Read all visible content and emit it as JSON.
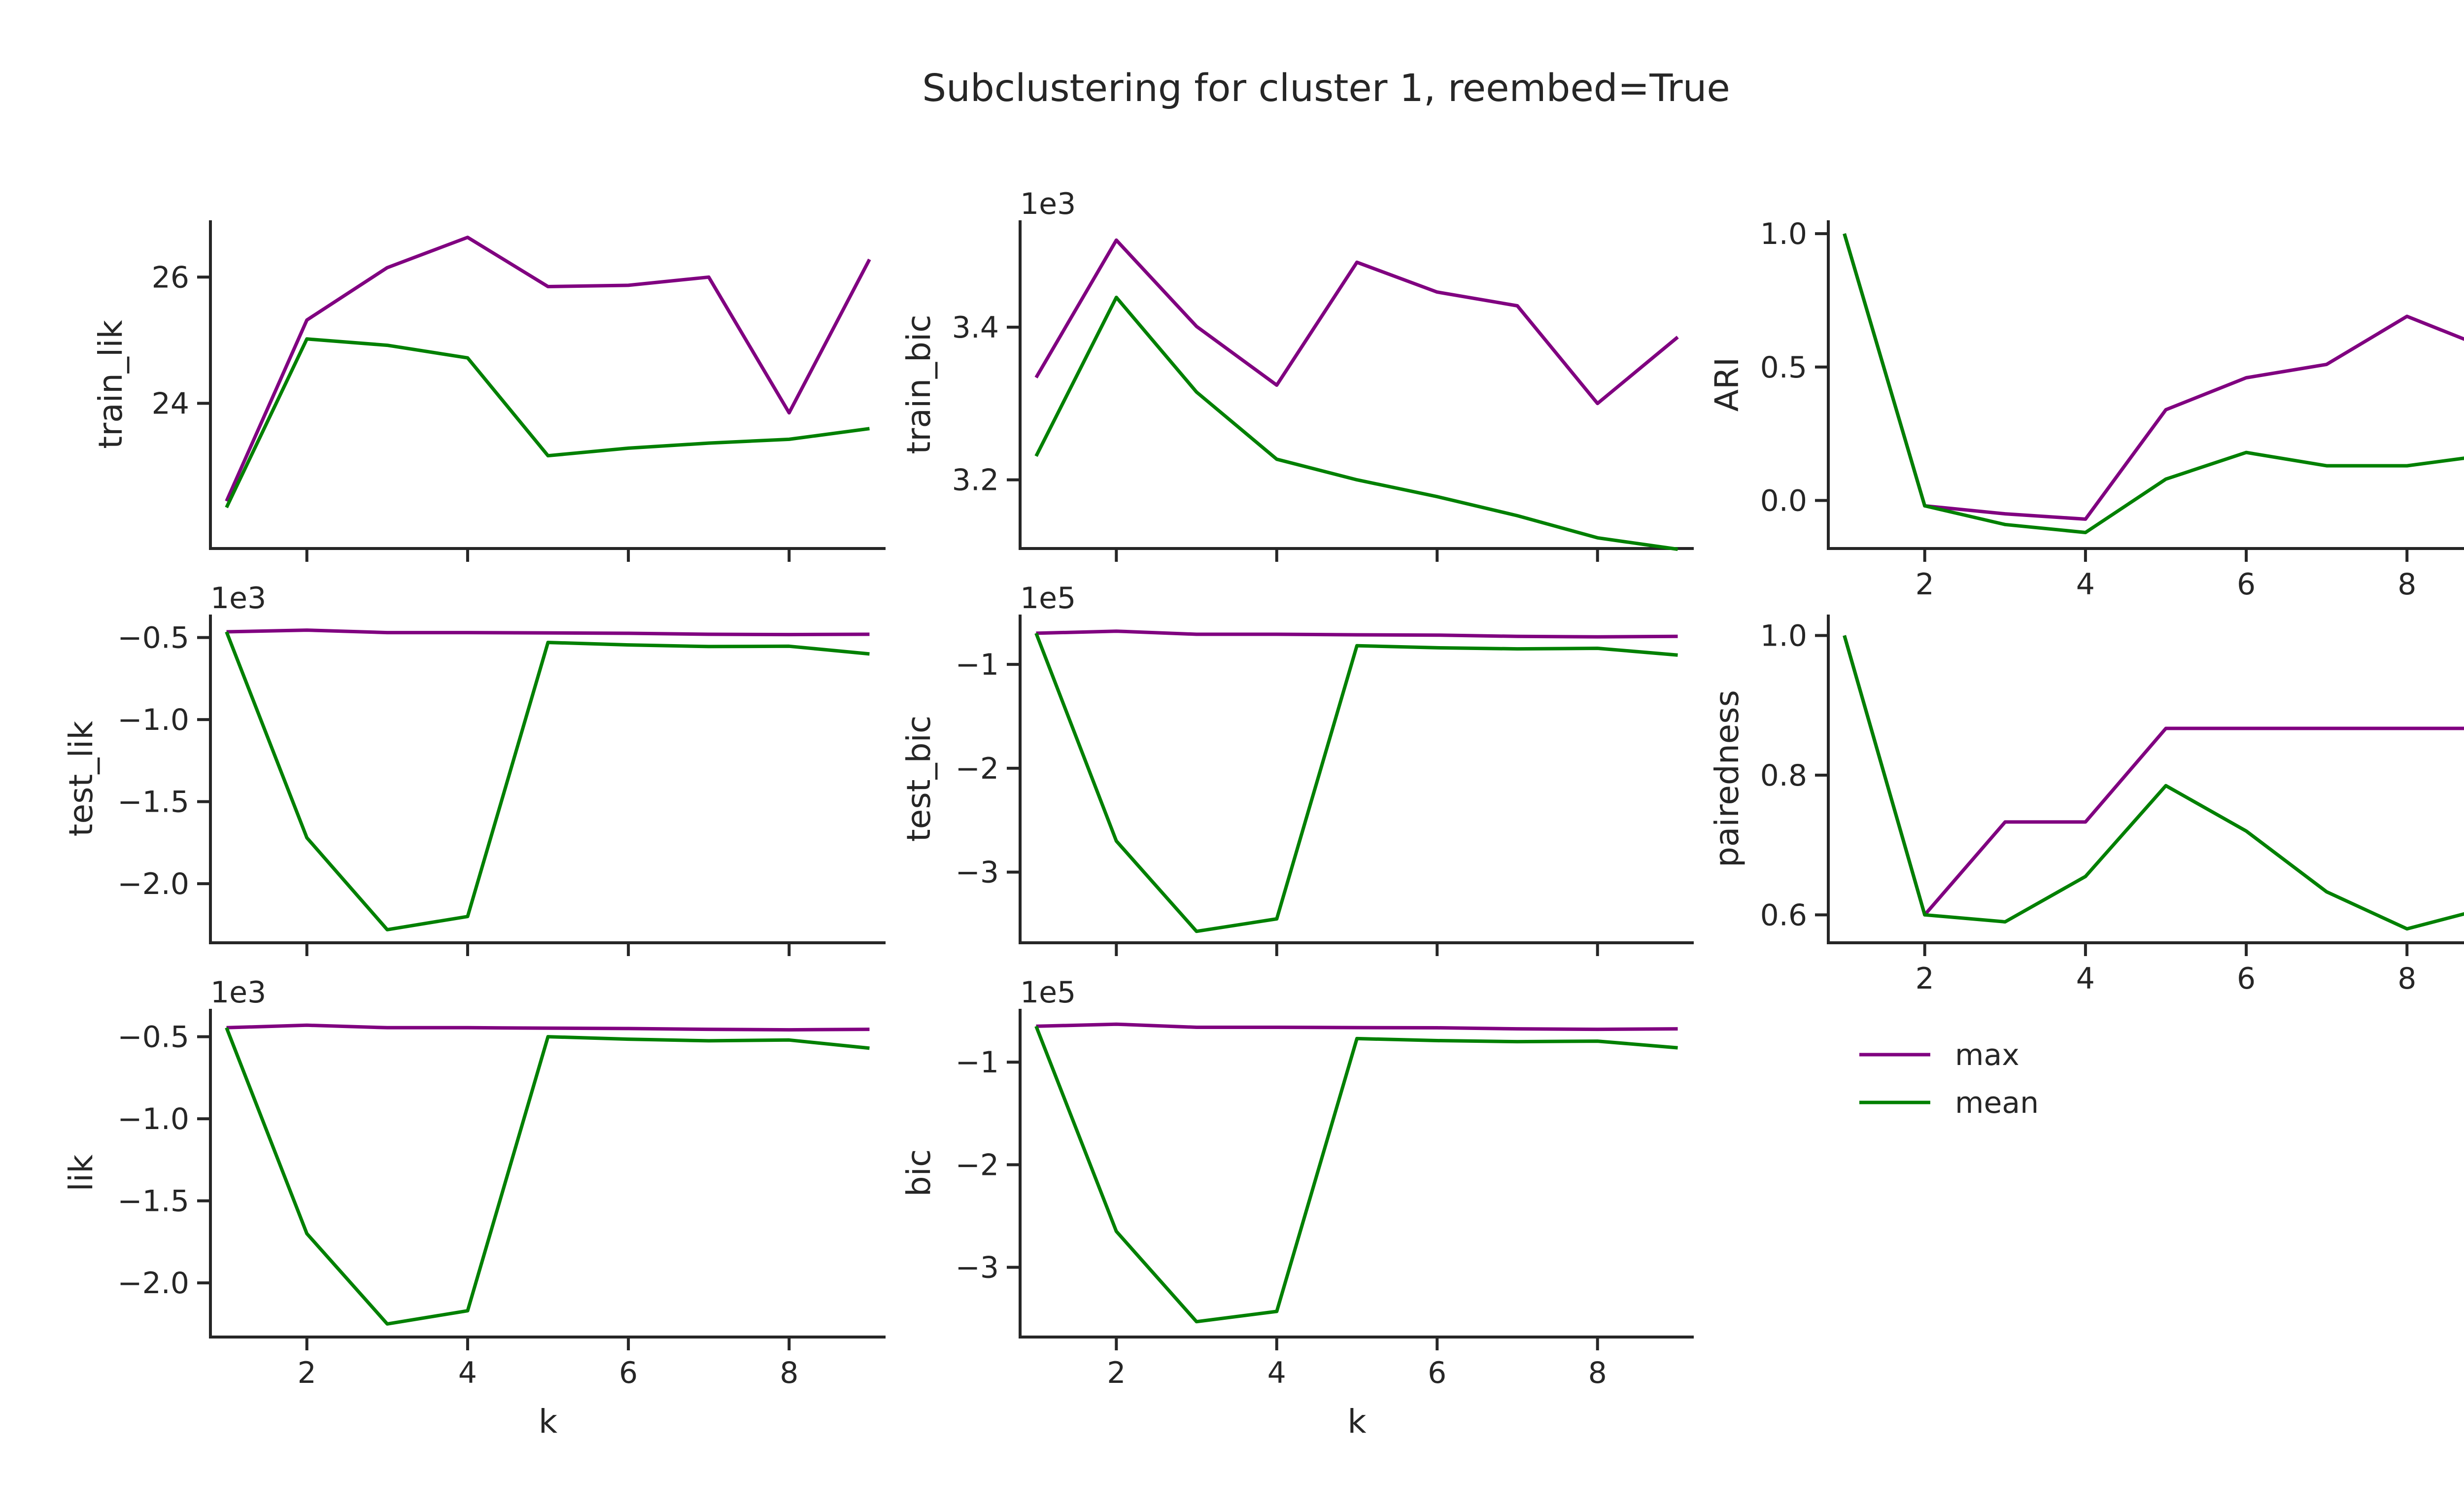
{
  "figure": {
    "title": "Subclustering for cluster 1, reembed=True",
    "colors": {
      "max": "#800080",
      "mean": "#008000",
      "axis": "#262626"
    }
  },
  "legend": {
    "entries": [
      {
        "label": "max",
        "color": "#800080"
      },
      {
        "label": "mean",
        "color": "#008000"
      }
    ]
  },
  "chart_data": [
    {
      "id": "train_lik",
      "type": "line",
      "ylabel": "train_lik",
      "xlabel": "",
      "offset_text": "",
      "xlim": [
        0.8,
        9.2
      ],
      "ylim": [
        21.7,
        26.9
      ],
      "xticks": [
        2,
        4,
        6,
        8
      ],
      "yticks": [
        24,
        26
      ],
      "ytick_labels": [
        "24",
        "26"
      ],
      "x": [
        1,
        2,
        3,
        4,
        5,
        6,
        7,
        8,
        9
      ],
      "series": [
        {
          "name": "max",
          "values": [
            22.45,
            25.32,
            26.15,
            26.63,
            25.85,
            25.87,
            26.0,
            23.85,
            26.28
          ]
        },
        {
          "name": "mean",
          "values": [
            22.35,
            25.02,
            24.92,
            24.72,
            23.17,
            23.29,
            23.37,
            23.43,
            23.6
          ]
        }
      ]
    },
    {
      "id": "train_bic",
      "type": "line",
      "ylabel": "train_bic",
      "xlabel": "",
      "offset_text": "1e3",
      "xlim": [
        0.8,
        9.2
      ],
      "ylim": [
        3.11,
        3.54
      ],
      "xticks": [
        2,
        4,
        6,
        8
      ],
      "yticks": [
        3.2,
        3.4
      ],
      "ytick_labels": [
        "3.2",
        "3.4"
      ],
      "x": [
        1,
        2,
        3,
        4,
        5,
        6,
        7,
        8,
        9
      ],
      "series": [
        {
          "name": "max",
          "values": [
            3.334,
            3.514,
            3.401,
            3.324,
            3.485,
            3.446,
            3.428,
            3.3,
            3.387
          ]
        },
        {
          "name": "mean",
          "values": [
            3.231,
            3.439,
            3.315,
            3.227,
            3.2,
            3.178,
            3.153,
            3.124,
            3.109
          ]
        }
      ]
    },
    {
      "id": "ari",
      "type": "line",
      "ylabel": "ARI",
      "xlabel": "",
      "offset_text": "",
      "xlim": [
        0.8,
        9.2
      ],
      "ylim": [
        -0.18,
        1.05
      ],
      "xticks": [
        2,
        4,
        6,
        8
      ],
      "yticks": [
        0.0,
        0.5,
        1.0
      ],
      "ytick_labels": [
        "0.0",
        "0.5",
        "1.0"
      ],
      "x": [
        1,
        2,
        3,
        4,
        5,
        6,
        7,
        8,
        9
      ],
      "series": [
        {
          "name": "max",
          "values": [
            1.0,
            -0.02,
            -0.05,
            -0.07,
            0.34,
            0.46,
            0.51,
            0.69,
            0.57
          ]
        },
        {
          "name": "mean",
          "values": [
            1.0,
            -0.02,
            -0.09,
            -0.12,
            0.08,
            0.18,
            0.13,
            0.13,
            0.17
          ]
        }
      ]
    },
    {
      "id": "test_lik",
      "type": "line",
      "ylabel": "test_lik",
      "xlabel": "",
      "offset_text": "1e3",
      "xlim": [
        0.8,
        9.2
      ],
      "ylim": [
        -2.36,
        -0.36
      ],
      "xticks": [
        2,
        4,
        6,
        8
      ],
      "yticks": [
        -2.0,
        -1.5,
        -1.0,
        -0.5
      ],
      "ytick_labels": [
        "−2.0",
        "−1.5",
        "−1.0",
        "−0.5"
      ],
      "x": [
        1,
        2,
        3,
        4,
        5,
        6,
        7,
        8,
        9
      ],
      "series": [
        {
          "name": "max",
          "values": [
            -0.465,
            -0.455,
            -0.47,
            -0.47,
            -0.472,
            -0.474,
            -0.48,
            -0.482,
            -0.48
          ]
        },
        {
          "name": "mean",
          "values": [
            -0.465,
            -1.72,
            -2.28,
            -2.2,
            -0.53,
            -0.545,
            -0.555,
            -0.553,
            -0.6
          ]
        }
      ]
    },
    {
      "id": "test_bic",
      "type": "line",
      "ylabel": "test_bic",
      "xlabel": "",
      "offset_text": "1e5",
      "xlim": [
        0.8,
        9.2
      ],
      "ylim": [
        -3.68,
        -0.52
      ],
      "xticks": [
        2,
        4,
        6,
        8
      ],
      "yticks": [
        -3,
        -2,
        -1
      ],
      "ytick_labels": [
        "−3",
        "−2",
        "−1"
      ],
      "x": [
        1,
        2,
        3,
        4,
        5,
        6,
        7,
        8,
        9
      ],
      "series": [
        {
          "name": "max",
          "values": [
            -0.7,
            -0.68,
            -0.71,
            -0.71,
            -0.715,
            -0.718,
            -0.73,
            -0.735,
            -0.73
          ]
        },
        {
          "name": "mean",
          "values": [
            -0.7,
            -2.7,
            -3.57,
            -3.45,
            -0.82,
            -0.84,
            -0.85,
            -0.845,
            -0.91
          ]
        }
      ]
    },
    {
      "id": "pairedness",
      "type": "line",
      "ylabel": "pairedness",
      "xlabel": "",
      "offset_text": "",
      "xlim": [
        0.8,
        9.2
      ],
      "ylim": [
        0.56,
        1.03
      ],
      "xticks": [
        2,
        4,
        6,
        8
      ],
      "yticks": [
        0.6,
        0.8,
        1.0
      ],
      "ytick_labels": [
        "0.6",
        "0.8",
        "1.0"
      ],
      "x": [
        1,
        2,
        3,
        4,
        5,
        6,
        7,
        8,
        9
      ],
      "series": [
        {
          "name": "max",
          "values": [
            1.0,
            0.6,
            0.733,
            0.733,
            0.867,
            0.867,
            0.867,
            0.867,
            0.867
          ]
        },
        {
          "name": "mean",
          "values": [
            1.0,
            0.6,
            0.59,
            0.655,
            0.785,
            0.72,
            0.633,
            0.58,
            0.61
          ]
        }
      ]
    },
    {
      "id": "lik",
      "type": "line",
      "ylabel": "lik",
      "xlabel": "k",
      "offset_text": "1e3",
      "xlim": [
        0.8,
        9.2
      ],
      "ylim": [
        -2.33,
        -0.33
      ],
      "xticks": [
        2,
        4,
        6,
        8
      ],
      "yticks": [
        -2.0,
        -1.5,
        -1.0,
        -0.5
      ],
      "ytick_labels": [
        "−2.0",
        "−1.5",
        "−1.0",
        "−0.5"
      ],
      "x": [
        1,
        2,
        3,
        4,
        5,
        6,
        7,
        8,
        9
      ],
      "series": [
        {
          "name": "max",
          "values": [
            -0.445,
            -0.43,
            -0.445,
            -0.445,
            -0.448,
            -0.45,
            -0.455,
            -0.458,
            -0.455
          ]
        },
        {
          "name": "mean",
          "values": [
            -0.445,
            -1.7,
            -2.25,
            -2.17,
            -0.5,
            -0.515,
            -0.525,
            -0.52,
            -0.57
          ]
        }
      ]
    },
    {
      "id": "bic",
      "type": "line",
      "ylabel": "bic",
      "xlabel": "k",
      "offset_text": "1e5",
      "xlim": [
        0.8,
        9.2
      ],
      "ylim": [
        -3.68,
        -0.48
      ],
      "xticks": [
        2,
        4,
        6,
        8
      ],
      "yticks": [
        -3,
        -2,
        -1
      ],
      "ytick_labels": [
        "−3",
        "−2",
        "−1"
      ],
      "x": [
        1,
        2,
        3,
        4,
        5,
        6,
        7,
        8,
        9
      ],
      "series": [
        {
          "name": "max",
          "values": [
            -0.65,
            -0.63,
            -0.66,
            -0.66,
            -0.663,
            -0.665,
            -0.675,
            -0.68,
            -0.675
          ]
        },
        {
          "name": "mean",
          "values": [
            -0.65,
            -2.65,
            -3.53,
            -3.43,
            -0.77,
            -0.79,
            -0.8,
            -0.795,
            -0.86
          ]
        }
      ]
    }
  ]
}
